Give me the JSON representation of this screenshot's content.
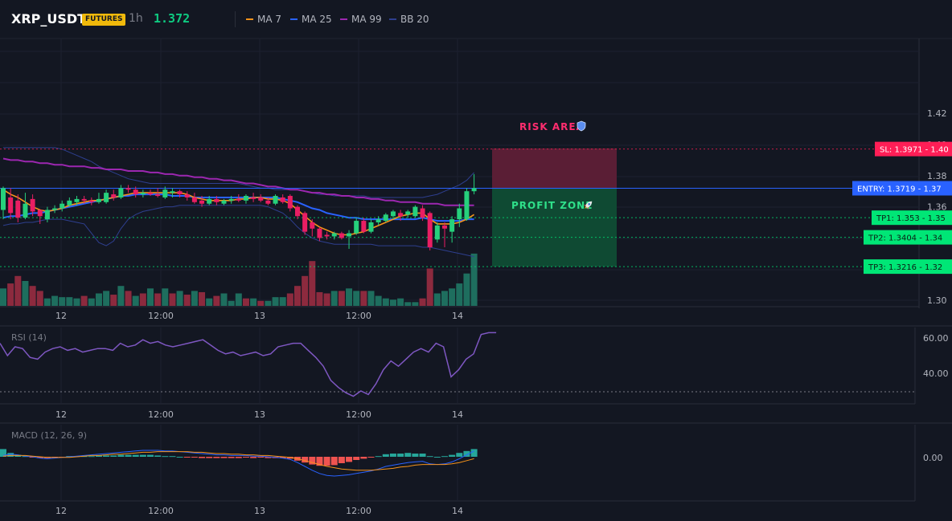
{
  "header": {
    "symbol": "XRP_USDT",
    "badge": "FUTURES",
    "interval": "1h",
    "price": "1.372",
    "legend": [
      {
        "label": "MA 7",
        "color": "#f7931a"
      },
      {
        "label": "MA 25",
        "color": "#2962ff"
      },
      {
        "label": "MA 99",
        "color": "#9c27b0"
      },
      {
        "label": "BB 20",
        "color": "#2e3f8f"
      }
    ]
  },
  "colors": {
    "up": "#26d07c",
    "down": "#e91e63",
    "vol_up": "#1e6e5e",
    "vol_down": "#8c2a3e",
    "risk": "#5a1e35",
    "profit": "#0f4a33"
  },
  "price_axis": {
    "ticks": [
      "1.42",
      "1.40",
      "1.38",
      "1.36",
      "1.34",
      "1.32",
      "1.30"
    ]
  },
  "x_axis": {
    "ticks": [
      "12",
      "12:00",
      "13",
      "12:00",
      "14"
    ]
  },
  "zones": {
    "risk_label": "RISK AREA",
    "profit_label": "PROFIT ZONE",
    "risk_icon": "shield-icon",
    "profit_icon": "rocket-icon"
  },
  "levels": [
    {
      "key": "sl",
      "tag": "SL: 1.3971",
      "axis": "1.40",
      "value": 1.3971,
      "color": "#ff1e56"
    },
    {
      "key": "entry",
      "tag": "ENTRY: 1.3719",
      "axis": "1.37",
      "value": 1.3719,
      "color": "#2962ff"
    },
    {
      "key": "tp1",
      "tag": "TP1: 1.353",
      "axis": "1.35",
      "value": 1.353,
      "color": "#00e676"
    },
    {
      "key": "tp2",
      "tag": "TP2: 1.3404",
      "axis": "1.34",
      "value": 1.3404,
      "color": "#00e676"
    },
    {
      "key": "tp3",
      "tag": "TP3: 1.3216",
      "axis": "1.32",
      "value": 1.3216,
      "color": "#00e676"
    }
  ],
  "rsi": {
    "label": "RSI (14)",
    "ticks": [
      "60.00",
      "40.00"
    ],
    "color": "#7e57c2",
    "values": [
      57,
      50,
      55,
      54,
      49,
      48,
      52,
      54,
      55,
      53,
      54,
      52,
      53,
      54,
      54,
      53,
      57,
      55,
      56,
      59,
      57,
      58,
      56,
      55,
      56,
      57,
      58,
      59,
      56,
      53,
      51,
      52,
      50,
      51,
      52,
      50,
      51,
      55,
      56,
      57,
      57,
      53,
      49,
      44,
      36,
      32,
      29,
      27,
      30,
      28,
      34,
      42,
      47,
      44,
      48,
      52,
      54,
      52,
      57,
      55,
      38,
      42,
      48,
      51,
      62,
      63,
      63
    ]
  },
  "macd": {
    "label": "MACD (12, 26, 9)",
    "tick": "0.00",
    "macd_color": "#2962ff",
    "signal_color": "#f7931a",
    "hist_up": "#26a69a",
    "hist_down": "#ef5350"
  },
  "chart_data": {
    "type": "candlestick",
    "y_range": [
      1.29,
      1.425
    ],
    "candles": [
      {
        "o": 1.358,
        "h": 1.373,
        "l": 1.352,
        "c": 1.372
      },
      {
        "o": 1.366,
        "h": 1.372,
        "l": 1.352,
        "c": 1.356
      },
      {
        "o": 1.364,
        "h": 1.368,
        "l": 1.35,
        "c": 1.353
      },
      {
        "o": 1.353,
        "h": 1.369,
        "l": 1.352,
        "c": 1.362
      },
      {
        "o": 1.365,
        "h": 1.368,
        "l": 1.354,
        "c": 1.357
      },
      {
        "o": 1.358,
        "h": 1.358,
        "l": 1.349,
        "c": 1.354
      },
      {
        "o": 1.352,
        "h": 1.36,
        "l": 1.35,
        "c": 1.358
      },
      {
        "o": 1.358,
        "h": 1.361,
        "l": 1.356,
        "c": 1.359
      },
      {
        "o": 1.359,
        "h": 1.364,
        "l": 1.357,
        "c": 1.362
      },
      {
        "o": 1.361,
        "h": 1.366,
        "l": 1.36,
        "c": 1.364
      },
      {
        "o": 1.363,
        "h": 1.367,
        "l": 1.361,
        "c": 1.365
      },
      {
        "o": 1.365,
        "h": 1.367,
        "l": 1.362,
        "c": 1.364
      },
      {
        "o": 1.364,
        "h": 1.366,
        "l": 1.361,
        "c": 1.363
      },
      {
        "o": 1.363,
        "h": 1.369,
        "l": 1.362,
        "c": 1.365
      },
      {
        "o": 1.363,
        "h": 1.371,
        "l": 1.362,
        "c": 1.369
      },
      {
        "o": 1.368,
        "h": 1.371,
        "l": 1.364,
        "c": 1.366
      },
      {
        "o": 1.366,
        "h": 1.374,
        "l": 1.365,
        "c": 1.372
      },
      {
        "o": 1.372,
        "h": 1.374,
        "l": 1.369,
        "c": 1.371
      },
      {
        "o": 1.371,
        "h": 1.373,
        "l": 1.366,
        "c": 1.368
      },
      {
        "o": 1.368,
        "h": 1.371,
        "l": 1.366,
        "c": 1.369
      },
      {
        "o": 1.369,
        "h": 1.371,
        "l": 1.367,
        "c": 1.368
      },
      {
        "o": 1.368,
        "h": 1.372,
        "l": 1.366,
        "c": 1.367
      },
      {
        "o": 1.366,
        "h": 1.373,
        "l": 1.365,
        "c": 1.371
      },
      {
        "o": 1.369,
        "h": 1.372,
        "l": 1.366,
        "c": 1.37
      },
      {
        "o": 1.37,
        "h": 1.371,
        "l": 1.366,
        "c": 1.368
      },
      {
        "o": 1.368,
        "h": 1.37,
        "l": 1.364,
        "c": 1.366
      },
      {
        "o": 1.366,
        "h": 1.369,
        "l": 1.362,
        "c": 1.363
      },
      {
        "o": 1.364,
        "h": 1.367,
        "l": 1.36,
        "c": 1.362
      },
      {
        "o": 1.362,
        "h": 1.367,
        "l": 1.361,
        "c": 1.365
      },
      {
        "o": 1.365,
        "h": 1.367,
        "l": 1.361,
        "c": 1.363
      },
      {
        "o": 1.362,
        "h": 1.365,
        "l": 1.361,
        "c": 1.364
      },
      {
        "o": 1.364,
        "h": 1.367,
        "l": 1.362,
        "c": 1.365
      },
      {
        "o": 1.365,
        "h": 1.368,
        "l": 1.363,
        "c": 1.364
      },
      {
        "o": 1.364,
        "h": 1.368,
        "l": 1.362,
        "c": 1.367
      },
      {
        "o": 1.366,
        "h": 1.369,
        "l": 1.363,
        "c": 1.365
      },
      {
        "o": 1.366,
        "h": 1.368,
        "l": 1.363,
        "c": 1.364
      },
      {
        "o": 1.364,
        "h": 1.366,
        "l": 1.361,
        "c": 1.362
      },
      {
        "o": 1.362,
        "h": 1.368,
        "l": 1.361,
        "c": 1.367
      },
      {
        "o": 1.366,
        "h": 1.368,
        "l": 1.362,
        "c": 1.363
      },
      {
        "o": 1.367,
        "h": 1.368,
        "l": 1.357,
        "c": 1.359
      },
      {
        "o": 1.36,
        "h": 1.361,
        "l": 1.352,
        "c": 1.354
      },
      {
        "o": 1.356,
        "h": 1.357,
        "l": 1.342,
        "c": 1.344
      },
      {
        "o": 1.35,
        "h": 1.352,
        "l": 1.341,
        "c": 1.346
      },
      {
        "o": 1.346,
        "h": 1.347,
        "l": 1.338,
        "c": 1.34
      },
      {
        "o": 1.342,
        "h": 1.344,
        "l": 1.339,
        "c": 1.341
      },
      {
        "o": 1.341,
        "h": 1.344,
        "l": 1.339,
        "c": 1.343
      },
      {
        "o": 1.343,
        "h": 1.344,
        "l": 1.339,
        "c": 1.34
      },
      {
        "o": 1.341,
        "h": 1.345,
        "l": 1.333,
        "c": 1.343
      },
      {
        "o": 1.343,
        "h": 1.353,
        "l": 1.342,
        "c": 1.351
      },
      {
        "o": 1.351,
        "h": 1.353,
        "l": 1.343,
        "c": 1.344
      },
      {
        "o": 1.344,
        "h": 1.352,
        "l": 1.343,
        "c": 1.35
      },
      {
        "o": 1.35,
        "h": 1.354,
        "l": 1.348,
        "c": 1.352
      },
      {
        "o": 1.351,
        "h": 1.356,
        "l": 1.35,
        "c": 1.355
      },
      {
        "o": 1.354,
        "h": 1.358,
        "l": 1.352,
        "c": 1.357
      },
      {
        "o": 1.356,
        "h": 1.358,
        "l": 1.351,
        "c": 1.354
      },
      {
        "o": 1.355,
        "h": 1.358,
        "l": 1.353,
        "c": 1.357
      },
      {
        "o": 1.354,
        "h": 1.361,
        "l": 1.353,
        "c": 1.36
      },
      {
        "o": 1.359,
        "h": 1.361,
        "l": 1.351,
        "c": 1.353
      },
      {
        "o": 1.356,
        "h": 1.357,
        "l": 1.332,
        "c": 1.334
      },
      {
        "o": 1.339,
        "h": 1.35,
        "l": 1.337,
        "c": 1.348
      },
      {
        "o": 1.348,
        "h": 1.35,
        "l": 1.334,
        "c": 1.346
      },
      {
        "o": 1.344,
        "h": 1.354,
        "l": 1.337,
        "c": 1.352
      },
      {
        "o": 1.352,
        "h": 1.362,
        "l": 1.347,
        "c": 1.359
      },
      {
        "o": 1.352,
        "h": 1.372,
        "l": 1.351,
        "c": 1.37
      },
      {
        "o": 1.37,
        "h": 1.381,
        "l": 1.368,
        "c": 1.372
      }
    ],
    "volume": [
      {
        "v": 7,
        "up": true
      },
      {
        "v": 9,
        "up": false
      },
      {
        "v": 12,
        "up": false
      },
      {
        "v": 10,
        "up": true
      },
      {
        "v": 8,
        "up": false
      },
      {
        "v": 6,
        "up": false
      },
      {
        "v": 3,
        "up": true
      },
      {
        "v": 4,
        "up": true
      },
      {
        "v": 3.5,
        "up": true
      },
      {
        "v": 3.5,
        "up": true
      },
      {
        "v": 3,
        "up": true
      },
      {
        "v": 4,
        "up": false
      },
      {
        "v": 3,
        "up": true
      },
      {
        "v": 5,
        "up": true
      },
      {
        "v": 6,
        "up": true
      },
      {
        "v": 4.5,
        "up": false
      },
      {
        "v": 8,
        "up": true
      },
      {
        "v": 6,
        "up": false
      },
      {
        "v": 4,
        "up": true
      },
      {
        "v": 5,
        "up": false
      },
      {
        "v": 7,
        "up": true
      },
      {
        "v": 5,
        "up": false
      },
      {
        "v": 7,
        "up": true
      },
      {
        "v": 5,
        "up": false
      },
      {
        "v": 6,
        "up": true
      },
      {
        "v": 4.5,
        "up": false
      },
      {
        "v": 6,
        "up": true
      },
      {
        "v": 5.5,
        "up": false
      },
      {
        "v": 3,
        "up": true
      },
      {
        "v": 4,
        "up": false
      },
      {
        "v": 5,
        "up": true
      },
      {
        "v": 2,
        "up": true
      },
      {
        "v": 5,
        "up": true
      },
      {
        "v": 3,
        "up": false
      },
      {
        "v": 3,
        "up": true
      },
      {
        "v": 2,
        "up": false
      },
      {
        "v": 2,
        "up": true
      },
      {
        "v": 3.5,
        "up": true
      },
      {
        "v": 3.5,
        "up": true
      },
      {
        "v": 5,
        "up": false
      },
      {
        "v": 8,
        "up": false
      },
      {
        "v": 12,
        "up": false
      },
      {
        "v": 18,
        "up": false
      },
      {
        "v": 5.5,
        "up": false
      },
      {
        "v": 5,
        "up": false
      },
      {
        "v": 6,
        "up": true
      },
      {
        "v": 6,
        "up": false
      },
      {
        "v": 7,
        "up": true
      },
      {
        "v": 6,
        "up": true
      },
      {
        "v": 6,
        "up": false
      },
      {
        "v": 6,
        "up": true
      },
      {
        "v": 4,
        "up": true
      },
      {
        "v": 3,
        "up": true
      },
      {
        "v": 2.5,
        "up": true
      },
      {
        "v": 3,
        "up": true
      },
      {
        "v": 1.5,
        "up": true
      },
      {
        "v": 1.5,
        "up": true
      },
      {
        "v": 3,
        "up": false
      },
      {
        "v": 15,
        "up": false
      },
      {
        "v": 5,
        "up": true
      },
      {
        "v": 6,
        "up": true
      },
      {
        "v": 7,
        "up": true
      },
      {
        "v": 9,
        "up": true
      },
      {
        "v": 13,
        "up": true
      },
      {
        "v": 21,
        "up": true
      }
    ],
    "ma7": [
      1.371,
      1.368,
      1.366,
      1.363,
      1.36,
      1.358,
      1.357,
      1.358,
      1.359,
      1.361,
      1.362,
      1.363,
      1.364,
      1.364,
      1.365,
      1.366,
      1.367,
      1.368,
      1.369,
      1.369,
      1.369,
      1.369,
      1.369,
      1.369,
      1.369,
      1.368,
      1.366,
      1.365,
      1.364,
      1.364,
      1.364,
      1.364,
      1.365,
      1.365,
      1.366,
      1.366,
      1.365,
      1.365,
      1.364,
      1.362,
      1.358,
      1.354,
      1.35,
      1.347,
      1.345,
      1.343,
      1.342,
      1.342,
      1.343,
      1.344,
      1.346,
      1.348,
      1.35,
      1.352,
      1.354,
      1.355,
      1.356,
      1.356,
      1.352,
      1.349,
      1.349,
      1.349,
      1.35,
      1.352,
      1.355
    ],
    "ma25": [
      1.353,
      1.354,
      1.354,
      1.355,
      1.356,
      1.356,
      1.357,
      1.358,
      1.359,
      1.36,
      1.361,
      1.362,
      1.363,
      1.364,
      1.365,
      1.366,
      1.367,
      1.367,
      1.368,
      1.368,
      1.368,
      1.368,
      1.368,
      1.367,
      1.367,
      1.367,
      1.366,
      1.366,
      1.366,
      1.366,
      1.366,
      1.366,
      1.366,
      1.366,
      1.366,
      1.366,
      1.366,
      1.366,
      1.365,
      1.364,
      1.363,
      1.361,
      1.359,
      1.358,
      1.356,
      1.355,
      1.354,
      1.353,
      1.353,
      1.352,
      1.352,
      1.352,
      1.352,
      1.352,
      1.352,
      1.352,
      1.352,
      1.353,
      1.352,
      1.351,
      1.351,
      1.351,
      1.351,
      1.352,
      1.352
    ],
    "ma99": [
      1.391,
      1.39,
      1.39,
      1.389,
      1.389,
      1.388,
      1.388,
      1.387,
      1.387,
      1.386,
      1.386,
      1.386,
      1.385,
      1.385,
      1.384,
      1.384,
      1.384,
      1.383,
      1.383,
      1.383,
      1.382,
      1.382,
      1.381,
      1.381,
      1.38,
      1.38,
      1.379,
      1.379,
      1.378,
      1.378,
      1.377,
      1.377,
      1.376,
      1.375,
      1.375,
      1.374,
      1.373,
      1.373,
      1.372,
      1.371,
      1.371,
      1.37,
      1.369,
      1.369,
      1.368,
      1.368,
      1.367,
      1.367,
      1.366,
      1.366,
      1.365,
      1.365,
      1.364,
      1.364,
      1.363,
      1.363,
      1.363,
      1.362,
      1.362,
      1.362,
      1.361,
      1.361,
      1.361,
      1.361,
      1.361
    ],
    "bb_upper": [
      1.398,
      1.398,
      1.398,
      1.398,
      1.398,
      1.398,
      1.398,
      1.398,
      1.397,
      1.395,
      1.393,
      1.391,
      1.389,
      1.386,
      1.384,
      1.382,
      1.38,
      1.378,
      1.377,
      1.376,
      1.375,
      1.375,
      1.375,
      1.375,
      1.375,
      1.375,
      1.375,
      1.375,
      1.375,
      1.375,
      1.375,
      1.375,
      1.375,
      1.374,
      1.373,
      1.372,
      1.372,
      1.371,
      1.371,
      1.371,
      1.371,
      1.37,
      1.369,
      1.368,
      1.368,
      1.367,
      1.367,
      1.367,
      1.367,
      1.367,
      1.366,
      1.366,
      1.366,
      1.366,
      1.366,
      1.366,
      1.366,
      1.366,
      1.367,
      1.368,
      1.37,
      1.372,
      1.374,
      1.377,
      1.382
    ],
    "bb_lower": [
      1.348,
      1.349,
      1.349,
      1.35,
      1.35,
      1.351,
      1.352,
      1.352,
      1.352,
      1.351,
      1.35,
      1.349,
      1.343,
      1.337,
      1.335,
      1.338,
      1.346,
      1.352,
      1.355,
      1.357,
      1.358,
      1.359,
      1.36,
      1.36,
      1.361,
      1.361,
      1.361,
      1.361,
      1.361,
      1.361,
      1.361,
      1.361,
      1.361,
      1.361,
      1.361,
      1.361,
      1.36,
      1.358,
      1.356,
      1.352,
      1.347,
      1.343,
      1.34,
      1.338,
      1.337,
      1.336,
      1.336,
      1.336,
      1.336,
      1.336,
      1.336,
      1.335,
      1.335,
      1.335,
      1.335,
      1.335,
      1.335,
      1.334,
      1.334,
      1.333,
      1.332,
      1.331,
      1.33,
      1.329,
      1.328
    ],
    "macd_line": [
      0.2,
      0.4,
      0.3,
      0.1,
      0.0,
      -0.2,
      -0.3,
      -0.2,
      -0.1,
      0.0,
      0.1,
      0.2,
      0.3,
      0.4,
      0.5,
      0.6,
      0.7,
      0.8,
      0.9,
      1.0,
      1.0,
      1.0,
      0.9,
      0.9,
      0.8,
      0.7,
      0.6,
      0.5,
      0.4,
      0.3,
      0.3,
      0.2,
      0.2,
      0.2,
      0.1,
      0.1,
      0.0,
      -0.1,
      -0.2,
      -0.4,
      -0.9,
      -1.5,
      -2.1,
      -2.6,
      -2.9,
      -3.0,
      -2.9,
      -2.8,
      -2.6,
      -2.4,
      -2.2,
      -1.9,
      -1.5,
      -1.3,
      -1.1,
      -0.9,
      -0.8,
      -0.7,
      -1.1,
      -1.2,
      -1.1,
      -0.8,
      -0.3,
      0.3,
      0.9
    ],
    "signal_line": [
      0.1,
      0.2,
      0.2,
      0.2,
      0.1,
      0.0,
      -0.1,
      -0.1,
      -0.1,
      -0.1,
      0.0,
      0.1,
      0.2,
      0.2,
      0.3,
      0.4,
      0.4,
      0.5,
      0.6,
      0.7,
      0.7,
      0.8,
      0.8,
      0.8,
      0.8,
      0.8,
      0.7,
      0.7,
      0.6,
      0.5,
      0.5,
      0.4,
      0.4,
      0.3,
      0.3,
      0.2,
      0.2,
      0.1,
      0.0,
      -0.1,
      -0.3,
      -0.6,
      -0.9,
      -1.2,
      -1.5,
      -1.7,
      -1.9,
      -2.0,
      -2.1,
      -2.1,
      -2.1,
      -2.0,
      -1.9,
      -1.8,
      -1.6,
      -1.5,
      -1.3,
      -1.2,
      -1.2,
      -1.2,
      -1.2,
      -1.1,
      -0.9,
      -0.6,
      -0.3
    ],
    "macd_hist": [
      1.2,
      0.6,
      0.3,
      0.1,
      -0.1,
      -0.2,
      -0.2,
      -0.1,
      -0.1,
      0.1,
      0.1,
      0.1,
      0.1,
      0.2,
      0.2,
      0.2,
      0.3,
      0.3,
      0.3,
      0.3,
      0.3,
      0.2,
      0.1,
      0.1,
      0.0,
      -0.1,
      -0.1,
      -0.2,
      -0.2,
      -0.2,
      -0.2,
      -0.2,
      -0.2,
      -0.1,
      -0.2,
      -0.1,
      -0.2,
      -0.2,
      -0.2,
      -0.3,
      -0.6,
      -0.9,
      -1.2,
      -1.4,
      -1.4,
      -1.3,
      -1.0,
      -0.8,
      -0.5,
      -0.3,
      -0.1,
      0.1,
      0.4,
      0.5,
      0.5,
      0.6,
      0.5,
      0.5,
      0.1,
      0.0,
      0.1,
      0.3,
      0.6,
      0.9,
      1.2
    ]
  }
}
